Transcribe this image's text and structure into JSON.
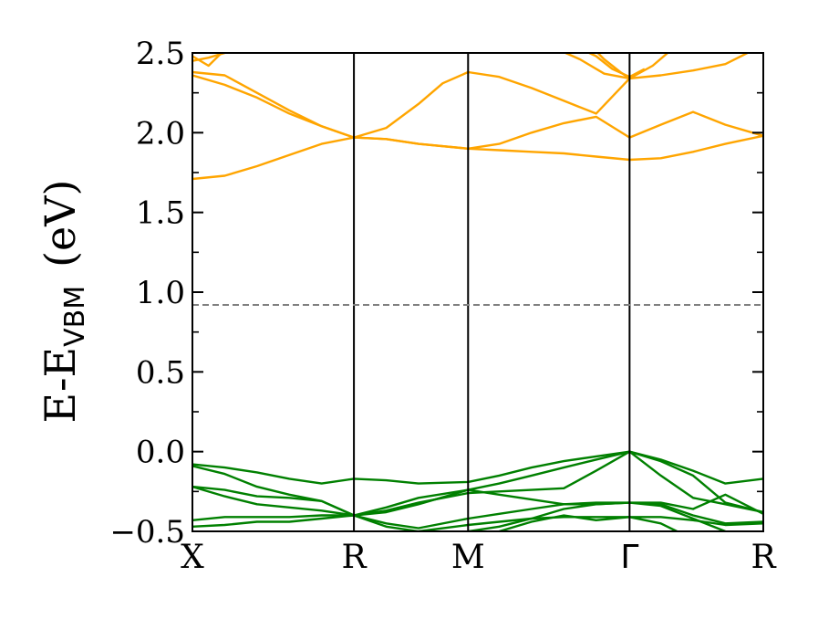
{
  "chart_data": {
    "type": "line",
    "title": "",
    "xlabel": "",
    "ylabel": "E-E",
    "ylabel_subscript": "VBM",
    "ylabel_unit": "(eV)",
    "ylim": [
      -0.5,
      2.5
    ],
    "xlim": [
      0,
      3.535
    ],
    "y_ticks": [
      {
        "value": -0.5,
        "label": "−0.5"
      },
      {
        "value": 0.0,
        "label": "0.0"
      },
      {
        "value": 0.5,
        "label": "0.5"
      },
      {
        "value": 1.0,
        "label": "1.0"
      },
      {
        "value": 1.5,
        "label": "1.5"
      },
      {
        "value": 2.0,
        "label": "2.0"
      },
      {
        "value": 2.5,
        "label": "2.5"
      }
    ],
    "k_points": [
      {
        "label": "X",
        "position": 0.0
      },
      {
        "label": "R",
        "position": 1.0
      },
      {
        "label": "M",
        "position": 1.707
      },
      {
        "label": "Γ",
        "position": 2.707
      },
      {
        "label": "R",
        "position": 3.535
      }
    ],
    "fermi_level": 0.92,
    "grid": false,
    "legend": "none",
    "colors": {
      "conduction": "#ffa500",
      "valence": "#008000",
      "fermi": "#808080",
      "axes": "#000000"
    },
    "conduction_bands": [
      {
        "x": [
          0,
          0.2,
          0.4,
          0.6,
          0.8,
          1.0,
          1.2,
          1.4,
          1.707,
          1.9,
          2.1,
          2.3,
          2.5,
          2.707,
          2.9,
          3.1,
          3.3,
          3.535
        ],
        "y": [
          1.71,
          1.73,
          1.79,
          1.86,
          1.93,
          1.97,
          1.96,
          1.93,
          1.9,
          1.89,
          1.88,
          1.87,
          1.85,
          1.83,
          1.84,
          1.88,
          1.93,
          1.98
        ]
      },
      {
        "x": [
          0,
          0.2,
          0.4,
          0.6,
          0.8,
          1.0,
          1.2,
          1.4,
          1.707,
          1.9,
          2.1,
          2.3,
          2.5,
          2.707,
          2.9,
          3.1,
          3.3,
          3.535
        ],
        "y": [
          2.36,
          2.3,
          2.22,
          2.12,
          2.04,
          1.97,
          1.96,
          1.93,
          1.9,
          1.93,
          2.0,
          2.06,
          2.1,
          1.97,
          2.05,
          2.13,
          2.05,
          1.98
        ]
      },
      {
        "x": [
          0,
          0.2,
          0.4,
          0.6,
          0.8,
          1.0,
          1.2,
          1.4,
          1.55,
          1.707,
          1.9,
          2.1,
          2.3,
          2.5,
          2.707,
          2.9,
          3.1,
          3.3,
          3.535
        ],
        "y": [
          2.38,
          2.36,
          2.25,
          2.14,
          2.04,
          1.97,
          2.03,
          2.18,
          2.31,
          2.38,
          2.35,
          2.28,
          2.2,
          2.12,
          2.34,
          2.36,
          2.39,
          2.43,
          2.55
        ]
      },
      {
        "x": [
          0,
          0.1,
          0.2,
          0.35,
          0.5
        ],
        "y": [
          2.45,
          2.47,
          2.5,
          2.55,
          2.6
        ]
      },
      {
        "x": [
          0,
          0.1,
          0.2
        ],
        "y": [
          2.48,
          2.42,
          2.52
        ]
      },
      {
        "x": [
          2.2,
          2.4,
          2.55,
          2.707,
          2.85,
          3.0
        ],
        "y": [
          2.55,
          2.46,
          2.37,
          2.34,
          2.42,
          2.55
        ]
      },
      {
        "x": [
          2.35,
          2.5,
          2.6,
          2.707,
          2.8
        ],
        "y": [
          2.55,
          2.48,
          2.4,
          2.35,
          2.4
        ]
      },
      {
        "x": [
          2.45,
          2.55,
          2.65,
          2.707
        ],
        "y": [
          2.56,
          2.46,
          2.38,
          2.34
        ]
      }
    ],
    "valence_bands": [
      {
        "x": [
          0,
          0.2,
          0.4,
          0.6,
          0.8,
          1.0,
          1.2,
          1.4,
          1.707,
          1.9,
          2.1,
          2.3,
          2.5,
          2.707,
          2.9,
          3.1,
          3.3,
          3.535
        ],
        "y": [
          -0.08,
          -0.1,
          -0.13,
          -0.17,
          -0.2,
          -0.17,
          -0.18,
          -0.2,
          -0.19,
          -0.15,
          -0.1,
          -0.06,
          -0.03,
          0.0,
          -0.05,
          -0.12,
          -0.2,
          -0.17
        ]
      },
      {
        "x": [
          0,
          0.2,
          0.4,
          0.6,
          0.8,
          1.0,
          1.2,
          1.4,
          1.707,
          1.9,
          2.1,
          2.3,
          2.5,
          2.707,
          2.9,
          3.1,
          3.3,
          3.535
        ],
        "y": [
          -0.09,
          -0.14,
          -0.22,
          -0.27,
          -0.31,
          -0.4,
          -0.38,
          -0.33,
          -0.24,
          -0.2,
          -0.15,
          -0.1,
          -0.05,
          0.0,
          -0.06,
          -0.15,
          -0.32,
          -0.38
        ]
      },
      {
        "x": [
          0,
          0.2,
          0.4,
          0.6,
          0.8,
          1.0,
          1.2,
          1.4,
          1.707,
          1.9,
          2.1,
          2.3,
          2.5,
          2.707,
          2.9,
          3.1,
          3.3,
          3.535
        ],
        "y": [
          -0.22,
          -0.24,
          -0.28,
          -0.29,
          -0.31,
          -0.4,
          -0.37,
          -0.32,
          -0.26,
          -0.25,
          -0.24,
          -0.23,
          -0.12,
          0.0,
          -0.15,
          -0.29,
          -0.33,
          -0.38
        ]
      },
      {
        "x": [
          0,
          0.2,
          0.4,
          0.6,
          0.8,
          1.0,
          1.2,
          1.4,
          1.707,
          1.9,
          2.1,
          2.3,
          2.5,
          2.707,
          2.9,
          3.1,
          3.3,
          3.535
        ],
        "y": [
          -0.22,
          -0.28,
          -0.33,
          -0.35,
          -0.37,
          -0.4,
          -0.35,
          -0.29,
          -0.24,
          -0.27,
          -0.3,
          -0.33,
          -0.33,
          -0.32,
          -0.32,
          -0.36,
          -0.27,
          -0.39
        ]
      },
      {
        "x": [
          0,
          0.2,
          0.4,
          0.6,
          0.8,
          1.0,
          1.2,
          1.4,
          1.707,
          1.9,
          2.1,
          2.3,
          2.5,
          2.707,
          2.9,
          3.1,
          3.3,
          3.535
        ],
        "y": [
          -0.43,
          -0.41,
          -0.41,
          -0.41,
          -0.4,
          -0.4,
          -0.45,
          -0.48,
          -0.42,
          -0.39,
          -0.36,
          -0.33,
          -0.32,
          -0.32,
          -0.33,
          -0.4,
          -0.45,
          -0.44
        ]
      },
      {
        "x": [
          0,
          0.2,
          0.4,
          0.6,
          0.8,
          1.0,
          1.2,
          1.4,
          1.707,
          1.9,
          2.1,
          2.3,
          2.5,
          2.707,
          2.9,
          3.1,
          3.3,
          3.535
        ],
        "y": [
          -0.47,
          -0.46,
          -0.44,
          -0.44,
          -0.42,
          -0.4,
          -0.47,
          -0.5,
          -0.46,
          -0.44,
          -0.42,
          -0.41,
          -0.41,
          -0.41,
          -0.41,
          -0.43,
          -0.46,
          -0.45
        ]
      },
      {
        "x": [
          1.707,
          1.9,
          2.1,
          2.3,
          2.5,
          2.707,
          2.9,
          3.1,
          3.3
        ],
        "y": [
          -0.5,
          -0.47,
          -0.42,
          -0.36,
          -0.33,
          -0.32,
          -0.34,
          -0.42,
          -0.5
        ]
      },
      {
        "x": [
          1.9,
          2.1,
          2.3,
          2.5,
          2.707,
          2.9,
          3.0
        ],
        "y": [
          -0.5,
          -0.44,
          -0.4,
          -0.43,
          -0.41,
          -0.45,
          -0.5
        ]
      }
    ]
  }
}
